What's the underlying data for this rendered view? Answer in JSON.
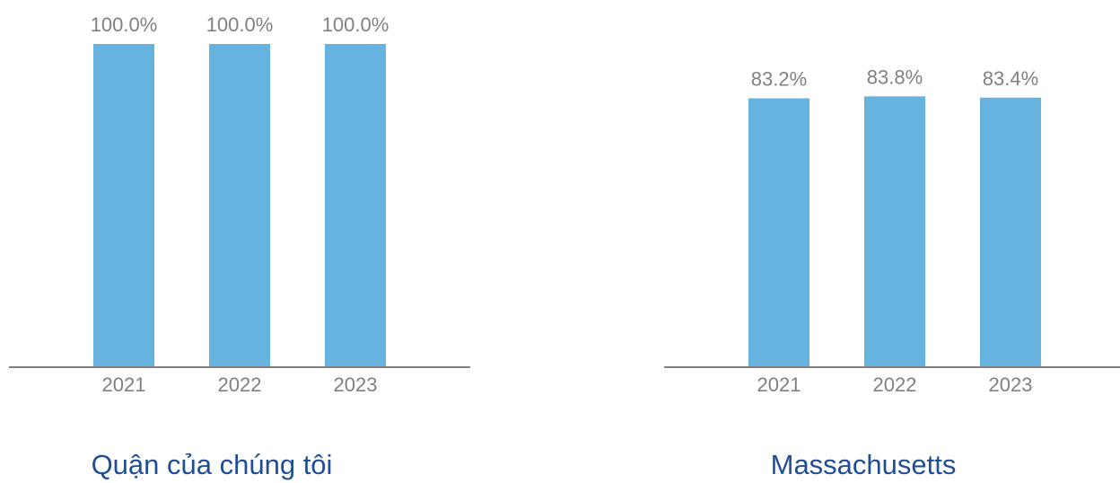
{
  "colors": {
    "bar": "#66b3df",
    "axis": "#808080",
    "label": "#808080",
    "caption": "#1f4e96"
  },
  "chart_data": [
    {
      "type": "bar",
      "title": "Quận của chúng tôi",
      "categories": [
        "2021",
        "2022",
        "2023"
      ],
      "values": [
        100.0,
        100.0,
        100.0
      ],
      "data_labels": [
        "100.0%",
        "100.0%",
        "100.0%"
      ],
      "ylim": [
        0,
        100
      ],
      "grid": false,
      "legend": "none"
    },
    {
      "type": "bar",
      "title": "Massachusetts",
      "categories": [
        "2021",
        "2022",
        "2023"
      ],
      "values": [
        83.2,
        83.8,
        83.4
      ],
      "data_labels": [
        "83.2%",
        "83.8%",
        "83.4%"
      ],
      "ylim": [
        0,
        100
      ],
      "grid": false,
      "legend": "none"
    }
  ]
}
